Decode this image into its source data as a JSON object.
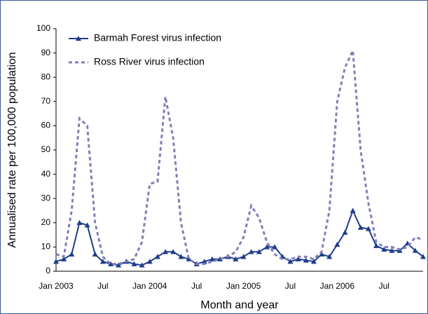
{
  "chart_data": {
    "type": "line",
    "y_label": "Annualised rate per 100,000 population",
    "x_label": "Month and year",
    "categories": [
      "Jan 2003",
      null,
      null,
      null,
      null,
      null,
      "Jul",
      null,
      null,
      null,
      null,
      null,
      "Jan 2004",
      null,
      null,
      null,
      null,
      null,
      "Jul",
      null,
      null,
      null,
      null,
      null,
      "Jan 2005",
      null,
      null,
      null,
      null,
      null,
      "Jul",
      null,
      null,
      null,
      null,
      null,
      "Jan 2006",
      null,
      null,
      null,
      null,
      null,
      "Jul",
      null,
      null,
      null,
      null,
      null
    ],
    "series": [
      {
        "name": "Barmah Forest virus infection",
        "color": "#1f3d8c",
        "style": "solid",
        "marker": "triangle",
        "values": [
          4,
          5,
          7,
          20,
          19,
          7,
          4,
          3,
          2.5,
          4,
          3,
          2.5,
          4,
          6,
          8,
          8,
          6,
          5,
          3,
          4,
          5,
          5,
          6,
          5,
          6,
          8,
          8,
          10,
          10,
          6,
          4,
          5,
          4.5,
          4,
          7,
          6,
          11,
          16,
          25,
          18,
          17.5,
          10.5,
          9,
          8.5,
          8.5,
          11.5,
          8.5,
          6
        ]
      },
      {
        "name": "Ross River virus infection",
        "color": "#8080b8",
        "style": "dashed",
        "marker": "none",
        "values": [
          7,
          6,
          25,
          63,
          60,
          20,
          6,
          3,
          3,
          4,
          5,
          12,
          36,
          37,
          72,
          55,
          20,
          5,
          3,
          3,
          4,
          5,
          6,
          8,
          14,
          27,
          22,
          12,
          7,
          5,
          5,
          6,
          6,
          5,
          8,
          25,
          70,
          84,
          91,
          50,
          28,
          12,
          10,
          10,
          9,
          10,
          14,
          13
        ]
      }
    ],
    "ylim": [
      0,
      100
    ],
    "yticks": [
      0,
      10,
      20,
      30,
      40,
      50,
      60,
      70,
      80,
      90,
      100
    ],
    "grid": false,
    "legend": "top-left"
  }
}
